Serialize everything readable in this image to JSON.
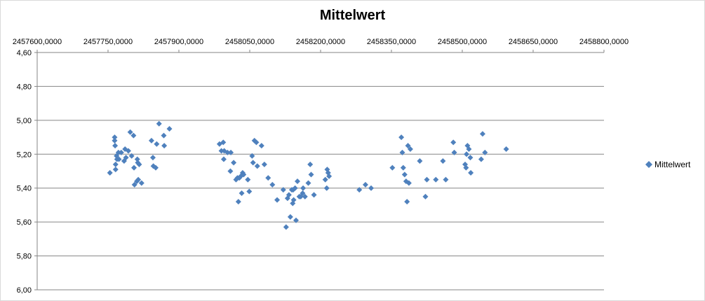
{
  "chart_data": {
    "type": "scatter",
    "title": "Mittelwert",
    "xlabel": "",
    "ylabel": "",
    "xlim": [
      2457600,
      2458800
    ],
    "ylim": [
      4.6,
      6.0
    ],
    "y_reversed": true,
    "x_tick_values": [
      2457600,
      2457750,
      2457900,
      2458050,
      2458200,
      2458350,
      2458500,
      2458650,
      2458800
    ],
    "x_tick_labels": [
      "2457600,0000",
      "2457750,0000",
      "2457900,0000",
      "2458050,0000",
      "2458200,0000",
      "2458350,0000",
      "2458500,0000",
      "2458650,0000",
      "2458800,0000"
    ],
    "y_tick_values": [
      4.6,
      4.8,
      5.0,
      5.2,
      5.4,
      5.6,
      5.8,
      6.0
    ],
    "y_tick_labels": [
      "4,60",
      "4,80",
      "5,00",
      "5,20",
      "5,40",
      "5,60",
      "5,80",
      "6,00"
    ],
    "x_axis_position": "top",
    "grid": "horizontal",
    "legend_position": "right",
    "marker": "diamond",
    "color": "#4f81bd",
    "series": [
      {
        "name": "Mittelwert",
        "points": [
          [
            2457754,
            5.31
          ],
          [
            2457764,
            5.1
          ],
          [
            2457764,
            5.12
          ],
          [
            2457765,
            5.15
          ],
          [
            2457766,
            5.29
          ],
          [
            2457766,
            5.26
          ],
          [
            2457768,
            5.21
          ],
          [
            2457769,
            5.23
          ],
          [
            2457772,
            5.19
          ],
          [
            2457773,
            5.23
          ],
          [
            2457778,
            5.19
          ],
          [
            2457784,
            5.24
          ],
          [
            2457786,
            5.17
          ],
          [
            2457788,
            5.22
          ],
          [
            2457793,
            5.18
          ],
          [
            2457797,
            5.07
          ],
          [
            2457800,
            5.21
          ],
          [
            2457804,
            5.09
          ],
          [
            2457805,
            5.28
          ],
          [
            2457806,
            5.38
          ],
          [
            2457811,
            5.36
          ],
          [
            2457812,
            5.23
          ],
          [
            2457813,
            5.25
          ],
          [
            2457814,
            5.35
          ],
          [
            2457816,
            5.26
          ],
          [
            2457821,
            5.37
          ],
          [
            2457842,
            5.12
          ],
          [
            2457845,
            5.22
          ],
          [
            2457846,
            5.27
          ],
          [
            2457851,
            5.28
          ],
          [
            2457853,
            5.14
          ],
          [
            2457858,
            5.02
          ],
          [
            2457868,
            5.09
          ],
          [
            2457869,
            5.15
          ],
          [
            2457880,
            5.05
          ],
          [
            2457986,
            5.14
          ],
          [
            2457990,
            5.18
          ],
          [
            2457994,
            5.13
          ],
          [
            2457995,
            5.23
          ],
          [
            2457996,
            5.18
          ],
          [
            2458003,
            5.19
          ],
          [
            2458009,
            5.3
          ],
          [
            2458010,
            5.19
          ],
          [
            2458016,
            5.25
          ],
          [
            2458021,
            5.35
          ],
          [
            2458024,
            5.34
          ],
          [
            2458026,
            5.48
          ],
          [
            2458028,
            5.34
          ],
          [
            2458031,
            5.33
          ],
          [
            2458033,
            5.43
          ],
          [
            2458035,
            5.31
          ],
          [
            2458037,
            5.32
          ],
          [
            2458046,
            5.35
          ],
          [
            2458049,
            5.42
          ],
          [
            2458055,
            5.21
          ],
          [
            2458057,
            5.25
          ],
          [
            2458060,
            5.12
          ],
          [
            2458064,
            5.13
          ],
          [
            2458066,
            5.27
          ],
          [
            2458075,
            5.15
          ],
          [
            2458081,
            5.26
          ],
          [
            2458089,
            5.34
          ],
          [
            2458098,
            5.38
          ],
          [
            2458108,
            5.47
          ],
          [
            2458121,
            5.41
          ],
          [
            2458127,
            5.63
          ],
          [
            2458130,
            5.46
          ],
          [
            2458133,
            5.44
          ],
          [
            2458136,
            5.57
          ],
          [
            2458139,
            5.41
          ],
          [
            2458141,
            5.49
          ],
          [
            2458142,
            5.41
          ],
          [
            2458143,
            5.47
          ],
          [
            2458146,
            5.4
          ],
          [
            2458148,
            5.59
          ],
          [
            2458151,
            5.36
          ],
          [
            2458155,
            5.45
          ],
          [
            2458158,
            5.45
          ],
          [
            2458162,
            5.43
          ],
          [
            2458163,
            5.4
          ],
          [
            2458167,
            5.45
          ],
          [
            2458174,
            5.37
          ],
          [
            2458178,
            5.26
          ],
          [
            2458180,
            5.32
          ],
          [
            2458186,
            5.44
          ],
          [
            2458210,
            5.35
          ],
          [
            2458213,
            5.4
          ],
          [
            2458214,
            5.29
          ],
          [
            2458216,
            5.31
          ],
          [
            2458218,
            5.33
          ],
          [
            2458282,
            5.41
          ],
          [
            2458295,
            5.38
          ],
          [
            2458307,
            5.4
          ],
          [
            2458352,
            5.28
          ],
          [
            2458371,
            5.1
          ],
          [
            2458373,
            5.19
          ],
          [
            2458375,
            5.28
          ],
          [
            2458378,
            5.32
          ],
          [
            2458381,
            5.36
          ],
          [
            2458383,
            5.48
          ],
          [
            2458385,
            5.15
          ],
          [
            2458387,
            5.37
          ],
          [
            2458390,
            5.17
          ],
          [
            2458410,
            5.24
          ],
          [
            2458422,
            5.45
          ],
          [
            2458425,
            5.35
          ],
          [
            2458444,
            5.35
          ],
          [
            2458459,
            5.24
          ],
          [
            2458465,
            5.35
          ],
          [
            2458481,
            5.13
          ],
          [
            2458483,
            5.19
          ],
          [
            2458506,
            5.26
          ],
          [
            2458508,
            5.28
          ],
          [
            2458509,
            5.2
          ],
          [
            2458511,
            5.15
          ],
          [
            2458514,
            5.17
          ],
          [
            2458517,
            5.22
          ],
          [
            2458518,
            5.31
          ],
          [
            2458540,
            5.23
          ],
          [
            2458543,
            5.08
          ],
          [
            2458548,
            5.19
          ],
          [
            2458593,
            5.17
          ]
        ]
      }
    ]
  }
}
